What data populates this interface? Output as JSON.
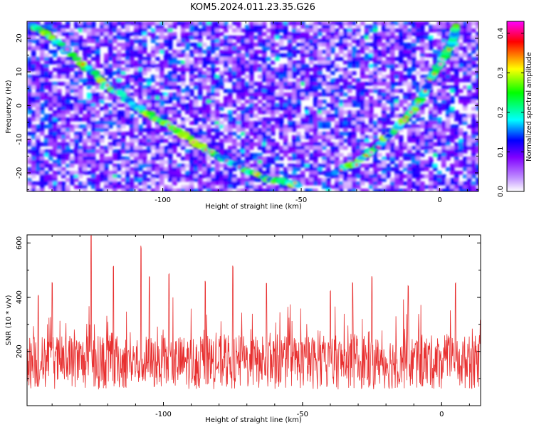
{
  "chart_data": [
    {
      "type": "heatmap",
      "title": "KOM5.2024.011.23.35.G26",
      "xlabel": "Height of straight line (km)",
      "ylabel": "Frequency (Hz)",
      "xlim": [
        -149,
        14
      ],
      "ylim": [
        -25.5,
        25
      ],
      "x_ticks": [
        -100,
        -50,
        0
      ],
      "x_tick_labels": [
        "-100",
        "-50",
        "0"
      ],
      "y_ticks": [
        20,
        10,
        0,
        -10,
        -20
      ],
      "y_tick_labels": [
        "20",
        "10",
        "0",
        "-10",
        "-20"
      ],
      "colorbar": {
        "label": "Normalized spectral amplitude",
        "range": [
          0,
          0.43
        ],
        "ticks": [
          0.0,
          0.1,
          0.2,
          0.3,
          0.4
        ],
        "tick_labels": [
          "0.0",
          "0.1",
          "0.2",
          "0.3",
          "0.4"
        ],
        "colors": [
          "#ffffff",
          "#8000ff",
          "#0000ff",
          "#00ffff",
          "#00ff00",
          "#ffff00",
          "#ff0000",
          "#ff00ff"
        ]
      },
      "features": [
        {
          "name": "",
          "description": "descending streak",
          "points": [
            [
              -147,
              24
            ],
            [
              -140,
              20
            ],
            [
              -130,
              13
            ],
            [
              -120,
              6
            ],
            [
              -110,
              0
            ],
            [
              -100,
              -5
            ],
            [
              -90,
              -10
            ],
            [
              -80,
              -15
            ],
            [
              -70,
              -19
            ],
            [
              -60,
              -22
            ],
            [
              -50,
              -24
            ]
          ]
        },
        {
          "name": "",
          "description": "ascending streak",
          "points": [
            [
              -40,
              -21
            ],
            [
              -30,
              -17
            ],
            [
              -22,
              -12
            ],
            [
              -15,
              -6
            ],
            [
              -8,
              0
            ],
            [
              -3,
              8
            ],
            [
              2,
              15
            ],
            [
              5,
              20
            ],
            [
              6,
              24
            ]
          ]
        }
      ],
      "grid": false
    },
    {
      "type": "line",
      "xlabel": "Height of straight line (km)",
      "ylabel": "SNR (10 * v/v)",
      "xlim": [
        -149,
        14
      ],
      "ylim": [
        0,
        630
      ],
      "x_ticks": [
        -100,
        -50,
        0
      ],
      "x_tick_labels": [
        "-100",
        "-50",
        "0"
      ],
      "y_ticks": [
        200,
        400,
        600
      ],
      "y_tick_labels": [
        "200",
        "400",
        "600"
      ],
      "series": [
        {
          "name": "",
          "color": "#e83030",
          "description": "noisy SNR trace, baseline ~50-300 with spikes",
          "peaks": [
            [
              -126,
              630
            ],
            [
              -108,
              590
            ],
            [
              -118,
              520
            ],
            [
              -75,
              520
            ],
            [
              -98,
              490
            ],
            [
              -105,
              480
            ],
            [
              -85,
              460
            ],
            [
              -63,
              460
            ],
            [
              -40,
              430
            ],
            [
              -32,
              460
            ],
            [
              -25,
              480
            ],
            [
              -12,
              450
            ],
            [
              5,
              460
            ],
            [
              -140,
              460
            ],
            [
              -145,
              410
            ]
          ]
        }
      ],
      "grid": false
    }
  ]
}
